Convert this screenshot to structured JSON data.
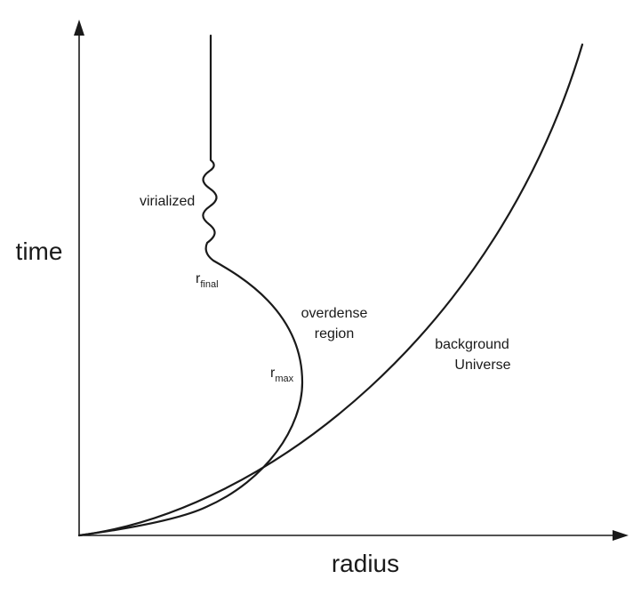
{
  "axes": {
    "y_label": "time",
    "x_label": "radius"
  },
  "curves": {
    "background": {
      "label_line1": "background",
      "label_line2": "Universe"
    },
    "overdense": {
      "label_line1": "overdense",
      "label_line2": "region"
    }
  },
  "annotations": {
    "virialized": "virialized",
    "r_final": {
      "base": "r",
      "sub": "final"
    },
    "r_max": {
      "base": "r",
      "sub": "max"
    }
  },
  "colors": {
    "ink": "#1a1a1a",
    "background": "#ffffff"
  }
}
